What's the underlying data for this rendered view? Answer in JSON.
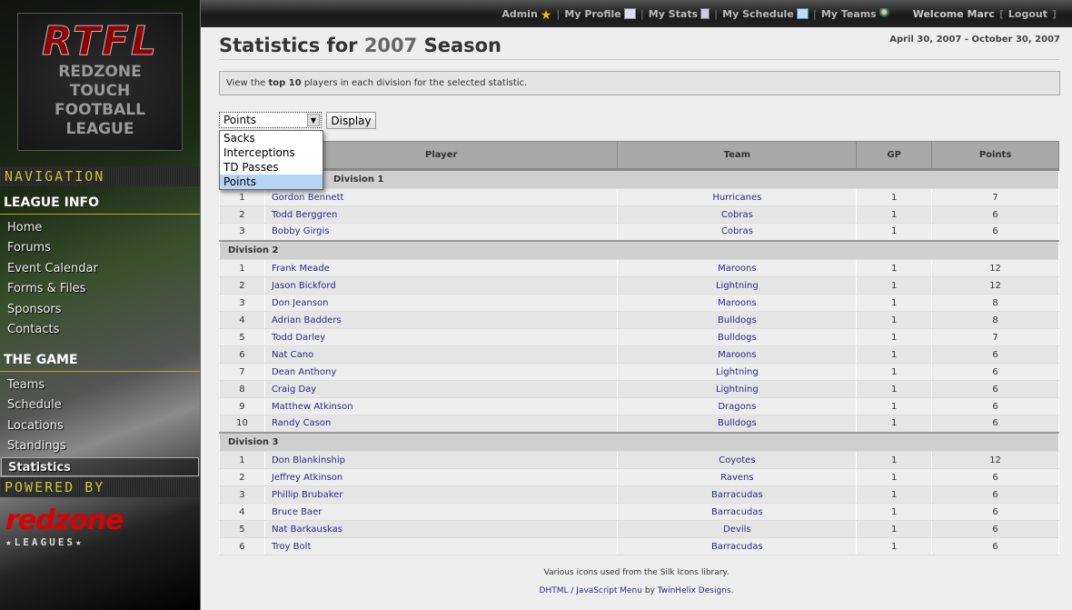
{
  "logo": {
    "text": "RTFL",
    "subtitle": [
      "REDZONE",
      "TOUCH",
      "FOOTBALL",
      "LEAGUE"
    ]
  },
  "sidebar": {
    "navigation_label": "NAVIGATION",
    "league_info": "LEAGUE INFO",
    "league_items": [
      "Home",
      "Forums",
      "Event Calendar",
      "Forms & Files",
      "Sponsors",
      "Contacts"
    ],
    "the_game": "THE GAME",
    "game_items": [
      "Teams",
      "Schedule",
      "Locations",
      "Standings",
      "Statistics"
    ],
    "active": "Statistics",
    "powered_by": "POWERED BY",
    "powered_logo": "redzone",
    "powered_logo_sub": "★LEAGUES★"
  },
  "topbar": {
    "admin": "Admin",
    "my_profile": "My Profile",
    "my_stats": "My Stats",
    "my_schedule": "My Schedule",
    "my_teams": "My Teams",
    "welcome": "Welcome Marc",
    "logout": "Logout"
  },
  "page": {
    "title_prefix": "Statistics for",
    "year": "2007",
    "title_suffix": "Season",
    "dates": "April 30, 2007 - October 30, 2007",
    "info_pre": "View the ",
    "info_bold": "top 10",
    "info_post": " players in each division for the selected statistic."
  },
  "form": {
    "selected": "Points",
    "options": [
      "Sacks",
      "Interceptions",
      "TD Passes",
      "Points"
    ],
    "display_label": "Display"
  },
  "table": {
    "headers": [
      "",
      "Player",
      "Team",
      "GP",
      "Points"
    ],
    "divisions": [
      {
        "name": "Division 1",
        "rows": [
          [
            1,
            "Gordon Bennett",
            "Hurricanes",
            1,
            7
          ],
          [
            2,
            "Todd Berggren",
            "Cobras",
            1,
            6
          ],
          [
            3,
            "Bobby Girgis",
            "Cobras",
            1,
            6
          ]
        ]
      },
      {
        "name": "Division 2",
        "rows": [
          [
            1,
            "Frank Meade",
            "Maroons",
            1,
            12
          ],
          [
            2,
            "Jason Bickford",
            "Lightning",
            1,
            12
          ],
          [
            3,
            "Don Jeanson",
            "Maroons",
            1,
            8
          ],
          [
            4,
            "Adrian Badders",
            "Bulldogs",
            1,
            8
          ],
          [
            5,
            "Todd Darley",
            "Bulldogs",
            1,
            7
          ],
          [
            6,
            "Nat Cano",
            "Maroons",
            1,
            6
          ],
          [
            7,
            "Dean Anthony",
            "Lightning",
            1,
            6
          ],
          [
            8,
            "Craig Day",
            "Lightning",
            1,
            6
          ],
          [
            9,
            "Matthew Atkinson",
            "Dragons",
            1,
            6
          ],
          [
            10,
            "Randy Cason",
            "Bulldogs",
            1,
            6
          ]
        ]
      },
      {
        "name": "Division 3",
        "rows": [
          [
            1,
            "Don Blankinship",
            "Coyotes",
            1,
            12
          ],
          [
            2,
            "Jeffrey Atkinson",
            "Ravens",
            1,
            6
          ],
          [
            3,
            "Phillip Brubaker",
            "Barracudas",
            1,
            6
          ],
          [
            4,
            "Bruce Baer",
            "Barracudas",
            1,
            6
          ],
          [
            5,
            "Nat Barkauskas",
            "Devils",
            1,
            6
          ],
          [
            6,
            "Troy Bolt",
            "Barracudas",
            1,
            6
          ]
        ]
      }
    ]
  },
  "footer": {
    "line1": "Various icons used from the Silk Icons library.",
    "line2_link1": "DHTML / JavaScript Menu",
    "line2_mid": " by ",
    "line2_link2": "TwinHelix Designs",
    "line2_end": "."
  }
}
